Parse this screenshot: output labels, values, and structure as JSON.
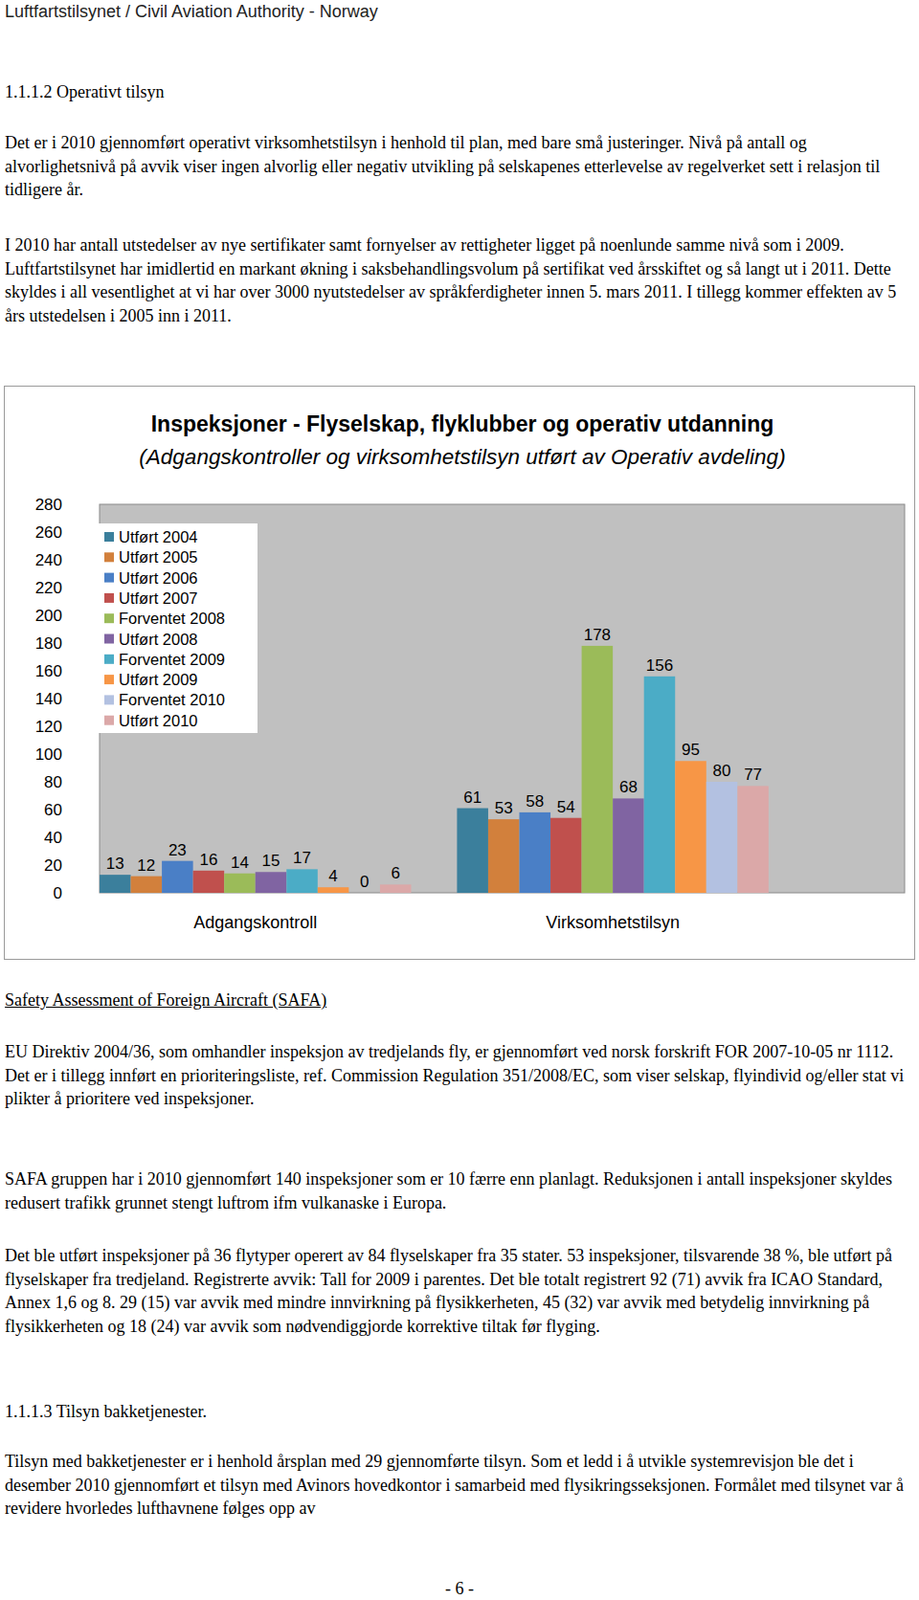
{
  "header": {
    "title": "Luftfartstilsynet / Civil Aviation Authority - Norway"
  },
  "blocks": [
    {
      "kind": "heading",
      "text": "1.1.1.2 Operativt tilsyn"
    },
    {
      "kind": "paragraph",
      "text": "Det er i 2010 gjennomført operativt virksomhetstilsyn i henhold til plan, med bare små justeringer. Nivå på antall og alvorlighetsnivå på avvik viser ingen alvorlig eller negativ utvikling på selskapenes etterlevelse av regelverket sett i relasjon til tidligere år."
    },
    {
      "kind": "paragraph",
      "text": "I 2010 har antall utstedelser av nye sertifikater samt fornyelser av rettigheter ligget på noenlunde samme nivå som i 2009. Luftfartstilsynet har imidlertid en markant økning i saksbehandlingsvolum på sertifikat ved årsskiftet og så langt ut i 2011. Dette skyldes i all vesentlighet at vi har over 3000 nyutstedelser av språkferdigheter innen 5. mars 2011. I tillegg kommer effekten av 5 års utstedelsen i 2005 inn i 2011."
    },
    {
      "kind": "underlined-heading",
      "text": "Safety Assessment of Foreign Aircraft (SAFA)"
    },
    {
      "kind": "paragraph",
      "text": "EU Direktiv 2004/36, som omhandler inspeksjon av tredjelands fly, er gjennomført ved norsk forskrift FOR 2007-10-05 nr 1112. Det er i tillegg innført en prioriteringsliste, ref. Commission Regulation 351/2008/EC, som viser selskap, flyindivid og/eller stat vi plikter å prioritere ved inspeksjoner."
    },
    {
      "kind": "paragraph",
      "text": "SAFA gruppen har i 2010 gjennomført 140 inspeksjoner som er 10 færre enn planlagt. Reduksjonen i antall inspeksjoner skyldes redusert trafikk grunnet stengt luftrom ifm vulkanaske i Europa."
    },
    {
      "kind": "paragraph",
      "text": "Det ble utført inspeksjoner på 36 flytyper operert av 84 flyselskaper fra 35 stater. 53 inspeksjoner, tilsvarende 38 %, ble utført på flyselskaper fra tredjeland. Registrerte avvik:  Tall for 2009 i parentes. Det ble totalt registrert 92 (71) avvik fra ICAO Standard, Annex 1,6 og 8. 29 (15) var avvik med mindre innvirkning på flysikkerheten, 45 (32) var avvik med betydelig innvirkning på flysikkerheten og 18 (24) var avvik som nødvendiggjorde korrektive tiltak før flyging."
    },
    {
      "kind": "heading",
      "text": "1.1.1.3  Tilsyn bakketjenester."
    },
    {
      "kind": "paragraph",
      "text": "Tilsyn med bakketjenester er i henhold årsplan med 29 gjennomførte tilsyn. Som et ledd i å utvikle systemrevisjon ble det i desember 2010 gjennomført et tilsyn med Avinors hovedkontor i samarbeid med flysikringsseksjonen. Formålet med tilsynet var å revidere hvorledes lufthavnene følges opp av"
    }
  ],
  "chart_data": {
    "type": "bar",
    "title": "Inspeksjoner  -  Flyselskap, flyklubber og operativ utdanning",
    "subtitle": "(Adgangskontroller og virksomhetstilsyn utført av Operativ avdeling)",
    "categories": [
      "Adgangskontroll",
      "Virksomhetstilsyn"
    ],
    "series": [
      {
        "name": "Utført 2004",
        "color": "#3b7f9c",
        "values": [
          13,
          61
        ]
      },
      {
        "name": "Utført 2005",
        "color": "#d2803c",
        "values": [
          12,
          53
        ]
      },
      {
        "name": "Utført 2006",
        "color": "#4a7fc6",
        "values": [
          23,
          58
        ]
      },
      {
        "name": "Utført 2007",
        "color": "#c0504d",
        "values": [
          16,
          54
        ]
      },
      {
        "name": "Forventet 2008",
        "color": "#9bbb59",
        "values": [
          14,
          178
        ]
      },
      {
        "name": "Utført 2008",
        "color": "#8064a2",
        "values": [
          15,
          68
        ]
      },
      {
        "name": "Forventet 2009",
        "color": "#4bacc6",
        "values": [
          17,
          156
        ]
      },
      {
        "name": "Utført 2009",
        "color": "#f79646",
        "values": [
          4,
          95
        ]
      },
      {
        "name": "Forventet 2010",
        "color": "#b3c1e1",
        "values": [
          0,
          80
        ]
      },
      {
        "name": "Utført 2010",
        "color": "#dba8a8",
        "values": [
          6,
          77
        ]
      }
    ],
    "ylim": [
      0,
      280
    ],
    "yticks": [
      0,
      20,
      40,
      60,
      80,
      100,
      120,
      140,
      160,
      180,
      200,
      220,
      240,
      260,
      280
    ],
    "grid": false,
    "legend": "top-left",
    "data_labels": true
  },
  "footer": {
    "page": "- 6 -"
  }
}
